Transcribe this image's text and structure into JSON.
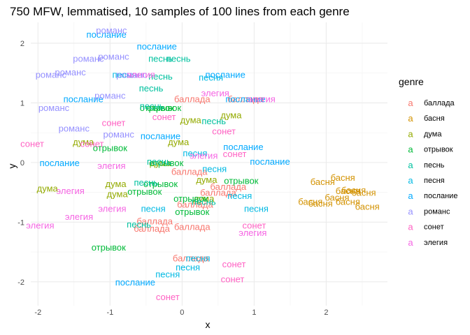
{
  "chart_data": {
    "type": "scatter",
    "title": "750 MFW, lemmatised, 10 samples of 100 lines from each genre",
    "xlabel": "x",
    "ylabel": "y",
    "xlim": [
      -2.1,
      2.85
    ],
    "ylim": [
      -2.4,
      2.35
    ],
    "x_ticks": [
      -2,
      -1,
      0,
      1,
      2
    ],
    "y_ticks": [
      -2,
      -1,
      0,
      1,
      2
    ],
    "grid": true,
    "legend": {
      "title": "genre",
      "placement": "right"
    },
    "series": [
      {
        "name": "баллада",
        "color": "#F8766D",
        "points": [
          [
            0.14,
            1.07
          ],
          [
            0.88,
            1.07
          ],
          [
            0.1,
            -0.15
          ],
          [
            0.64,
            -0.4
          ],
          [
            0.5,
            -0.5
          ],
          [
            0.18,
            -0.7
          ],
          [
            -0.38,
            -0.98
          ],
          [
            -0.42,
            -1.1
          ],
          [
            0.14,
            -1.07
          ],
          [
            0.12,
            -1.6
          ]
        ]
      },
      {
        "name": "басня",
        "color": "#D39200",
        "points": [
          [
            2.23,
            -0.25
          ],
          [
            1.95,
            -0.32
          ],
          [
            2.3,
            -0.47
          ],
          [
            2.38,
            -0.46
          ],
          [
            2.52,
            -0.5
          ],
          [
            2.15,
            -0.58
          ],
          [
            1.78,
            -0.65
          ],
          [
            1.92,
            -0.68
          ],
          [
            2.57,
            -0.73
          ],
          [
            2.3,
            -0.65
          ]
        ]
      },
      {
        "name": "дума",
        "color": "#93AA00",
        "points": [
          [
            0.68,
            0.8
          ],
          [
            0.12,
            0.72
          ],
          [
            -1.37,
            0.35
          ],
          [
            -0.05,
            0.35
          ],
          [
            -0.3,
            0.0
          ],
          [
            -0.92,
            -0.35
          ],
          [
            0.34,
            -0.28
          ],
          [
            -1.87,
            -0.43
          ],
          [
            -0.9,
            -0.52
          ],
          [
            0.3,
            -0.6
          ]
        ]
      },
      {
        "name": "отрывок",
        "color": "#00BA38",
        "points": [
          [
            -0.35,
            0.92
          ],
          [
            -0.25,
            0.92
          ],
          [
            -1.0,
            0.25
          ],
          [
            -0.22,
            0.0
          ],
          [
            0.82,
            -0.3
          ],
          [
            -0.52,
            -0.48
          ],
          [
            -0.3,
            -0.35
          ],
          [
            0.12,
            -0.6
          ],
          [
            0.14,
            -0.82
          ],
          [
            -1.02,
            -1.42
          ]
        ]
      },
      {
        "name": "песнь",
        "color": "#00C19F",
        "points": [
          [
            -0.3,
            1.75
          ],
          [
            -0.05,
            1.75
          ],
          [
            -0.3,
            1.45
          ],
          [
            -0.43,
            1.25
          ],
          [
            -0.42,
            0.95
          ],
          [
            0.44,
            0.7
          ],
          [
            -0.32,
            0.02
          ],
          [
            -0.5,
            -0.33
          ],
          [
            -0.6,
            -1.03
          ],
          [
            0.3,
            -0.65
          ]
        ]
      },
      {
        "name": "песня",
        "color": "#00B9E3",
        "points": [
          [
            -0.8,
            1.48
          ],
          [
            0.4,
            1.43
          ],
          [
            0.18,
            0.16
          ],
          [
            0.45,
            -0.1
          ],
          [
            -0.4,
            -0.77
          ],
          [
            1.03,
            -0.77
          ],
          [
            0.8,
            -0.55
          ],
          [
            0.22,
            -1.6
          ],
          [
            0.08,
            -1.75
          ],
          [
            -0.2,
            -1.87
          ]
        ]
      },
      {
        "name": "послание",
        "color": "#00A9FF",
        "points": [
          [
            -1.05,
            2.15
          ],
          [
            -0.35,
            1.95
          ],
          [
            0.6,
            1.48
          ],
          [
            0.88,
            1.07
          ],
          [
            -1.37,
            1.07
          ],
          [
            0.85,
            0.27
          ],
          [
            -0.3,
            0.45
          ],
          [
            1.22,
            0.02
          ],
          [
            -1.7,
            0.0
          ],
          [
            -0.65,
            -2.0
          ]
        ]
      },
      {
        "name": "романс",
        "color": "#9590FF",
        "points": [
          [
            -1.3,
            1.75
          ],
          [
            -1.55,
            1.52
          ],
          [
            -1.82,
            1.48
          ],
          [
            -0.7,
            1.48
          ],
          [
            -0.95,
            1.78
          ],
          [
            -0.98,
            2.22
          ],
          [
            -1.0,
            1.13
          ],
          [
            -1.78,
            0.92
          ],
          [
            -1.5,
            0.58
          ],
          [
            -0.88,
            0.48
          ]
        ]
      },
      {
        "name": "сонет",
        "color": "#FF61C3",
        "points": [
          [
            -0.95,
            0.67
          ],
          [
            -0.25,
            0.77
          ],
          [
            0.58,
            0.53
          ],
          [
            -2.08,
            0.32
          ],
          [
            -1.25,
            0.32
          ],
          [
            0.73,
            0.15
          ],
          [
            1.0,
            -1.05
          ],
          [
            0.72,
            -1.7
          ],
          [
            0.7,
            -1.95
          ],
          [
            -0.2,
            -2.25
          ]
        ]
      },
      {
        "name": "элегия",
        "color": "#F564E3",
        "points": [
          [
            -0.57,
            1.48
          ],
          [
            0.46,
            1.17
          ],
          [
            1.1,
            1.07
          ],
          [
            0.3,
            0.12
          ],
          [
            -0.98,
            -0.05
          ],
          [
            -1.55,
            -0.47
          ],
          [
            -0.97,
            -0.77
          ],
          [
            -1.43,
            -0.9
          ],
          [
            -1.97,
            -1.05
          ],
          [
            0.98,
            -1.17
          ]
        ]
      }
    ]
  }
}
